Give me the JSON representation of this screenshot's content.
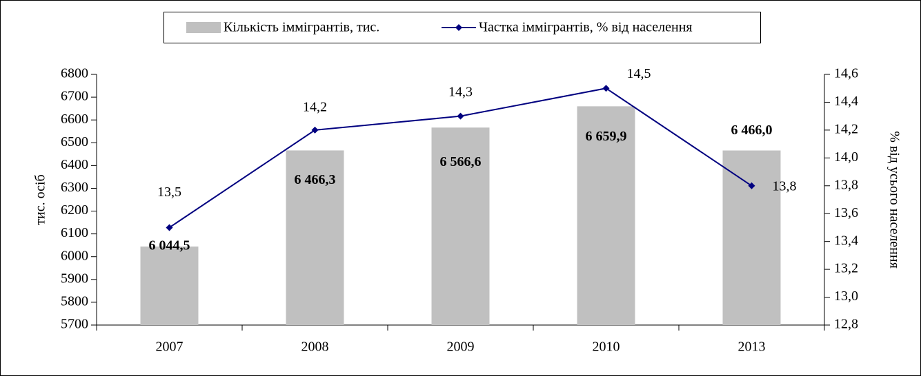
{
  "chart_data": {
    "type": "bar",
    "categories": [
      "2007",
      "2008",
      "2009",
      "2010",
      "2013"
    ],
    "series": [
      {
        "name": "Кількість іммігрантів, тис.",
        "type": "bar",
        "color": "#c0c0c0",
        "values": [
          6044.5,
          6466.3,
          6566.6,
          6659.9,
          6466.0
        ],
        "value_labels": [
          "6 044,5",
          "6 466,3",
          "6 566,6",
          "6 659,9",
          "6 466,0"
        ]
      },
      {
        "name": "Частка іммігрантів, % від населення",
        "type": "line",
        "axis": "y2",
        "color": "#000080",
        "values": [
          13.5,
          14.2,
          14.3,
          14.5,
          13.8
        ],
        "value_labels": [
          "13,5",
          "14,2",
          "14,3",
          "14,5",
          "13,8"
        ]
      }
    ],
    "ylabel": "тис. осіб",
    "y2label": "% від усього населення",
    "ylim": [
      5700,
      6800
    ],
    "yticks": [
      5700,
      5800,
      5900,
      6000,
      6100,
      6200,
      6300,
      6400,
      6500,
      6600,
      6700,
      6800
    ],
    "y2lim": [
      12.8,
      14.6
    ],
    "y2ticks": [
      {
        "value": 12.8,
        "label": "12,8"
      },
      {
        "value": 13.0,
        "label": "13,0"
      },
      {
        "value": 13.2,
        "label": "13,2"
      },
      {
        "value": 13.4,
        "label": "13,4"
      },
      {
        "value": 13.6,
        "label": "13,6"
      },
      {
        "value": 13.8,
        "label": "13,8"
      },
      {
        "value": 14.0,
        "label": "14,0"
      },
      {
        "value": 14.2,
        "label": "14,2"
      },
      {
        "value": 14.4,
        "label": "14,4"
      },
      {
        "value": 14.6,
        "label": "14,6"
      }
    ],
    "legend": "top"
  }
}
